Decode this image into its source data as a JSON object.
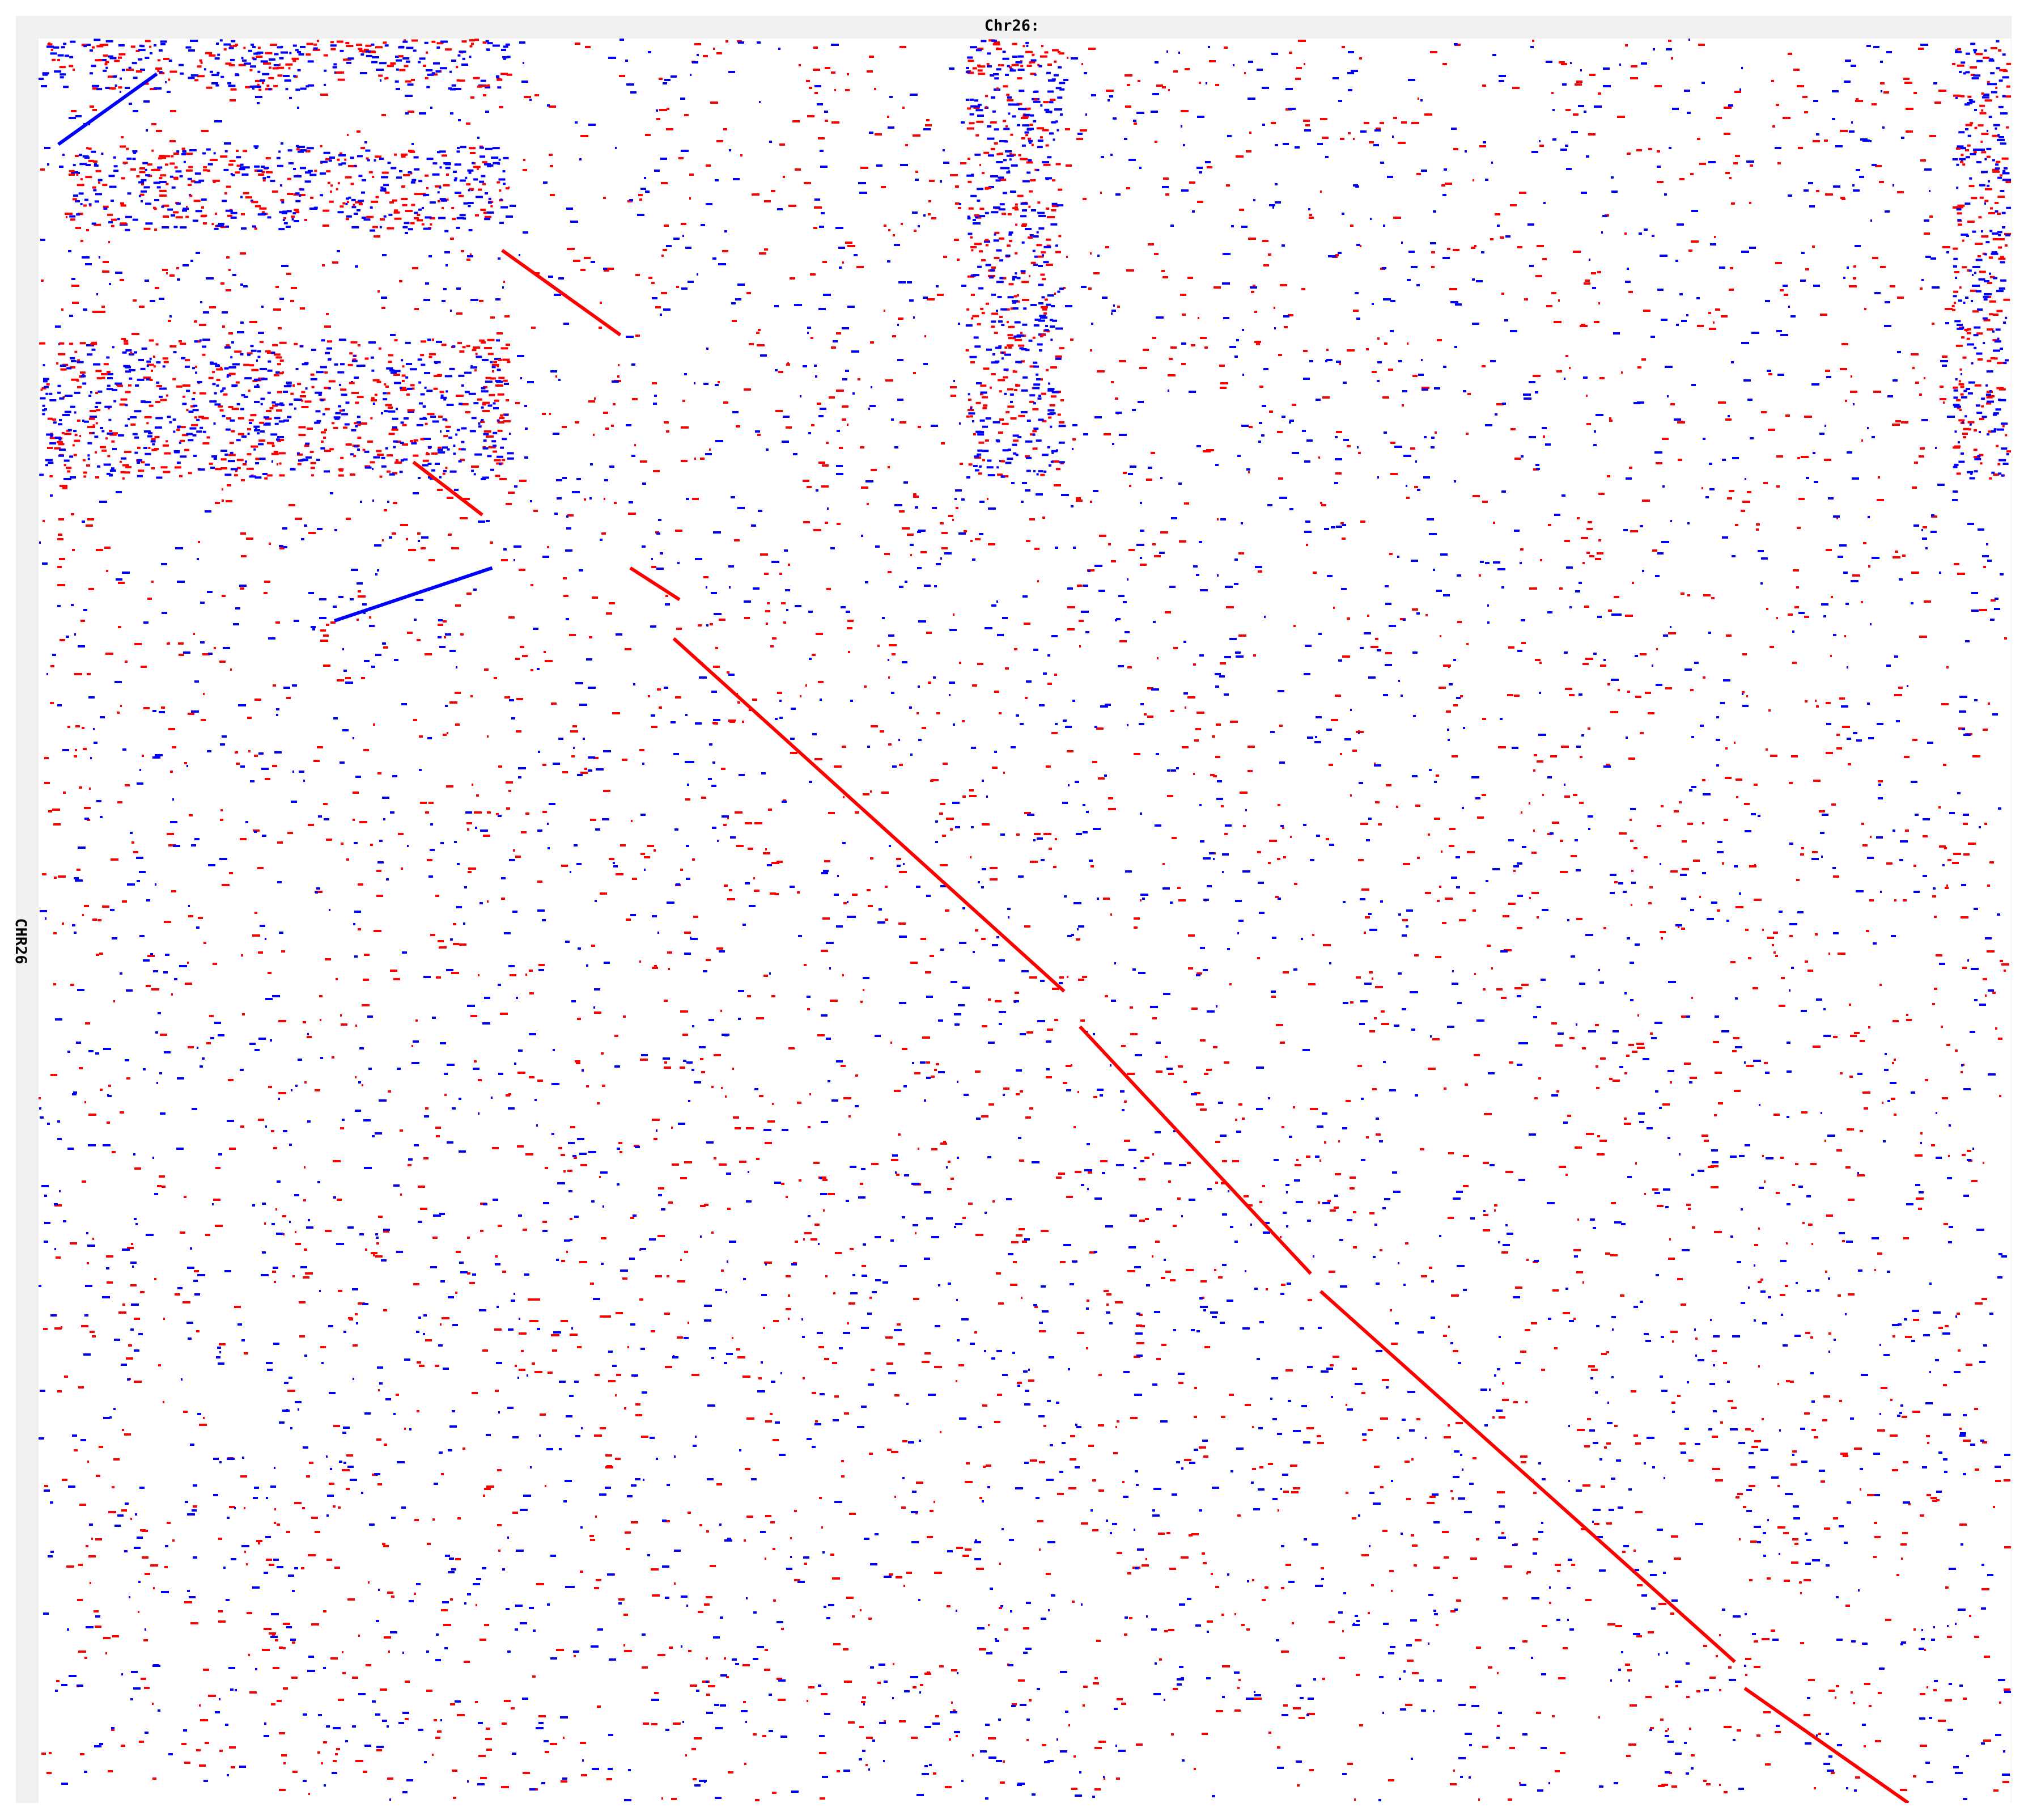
{
  "chart_data": {
    "type": "dotplot",
    "xlabel": "Chr26:",
    "ylabel": "CHR26",
    "grid": false,
    "legend": "none",
    "xlim": [
      0,
      1
    ],
    "ylim": [
      0,
      1
    ],
    "colors": {
      "forward_match": "#ff0000",
      "reverse_match": "#0000ff",
      "background": "#ffffff",
      "frame": "#f0f0f0"
    },
    "main_diagonal": {
      "color": "#ff0000",
      "segments": [
        [
          0.235,
          0.12,
          0.295,
          0.168
        ],
        [
          0.3,
          0.3,
          0.325,
          0.318
        ],
        [
          0.322,
          0.34,
          0.52,
          0.54
        ],
        [
          0.528,
          0.56,
          0.645,
          0.7
        ],
        [
          0.65,
          0.71,
          0.86,
          0.92
        ],
        [
          0.865,
          0.935,
          0.948,
          1.0
        ]
      ]
    },
    "secondary_segments": [
      {
        "color": "#ff0000",
        "segment": [
          0.19,
          0.24,
          0.225,
          0.27
        ]
      },
      {
        "color": "#0000ff",
        "segment": [
          0.01,
          0.06,
          0.06,
          0.02
        ]
      },
      {
        "color": "#0000ff",
        "segment": [
          0.15,
          0.33,
          0.23,
          0.3
        ]
      }
    ],
    "dense_regions": [
      {
        "rows": [
          0.0,
          0.03
        ],
        "cols": [
          0.0,
          0.24
        ]
      },
      {
        "rows": [
          0.06,
          0.11
        ],
        "cols": [
          0.015,
          0.24
        ]
      },
      {
        "rows": [
          0.17,
          0.25
        ],
        "cols": [
          0.0,
          0.24
        ]
      },
      {
        "rows": [
          0.0,
          0.25
        ],
        "cols": [
          0.47,
          0.52
        ]
      },
      {
        "rows": [
          0.0,
          0.25
        ],
        "cols": [
          0.97,
          1.0
        ]
      }
    ]
  }
}
